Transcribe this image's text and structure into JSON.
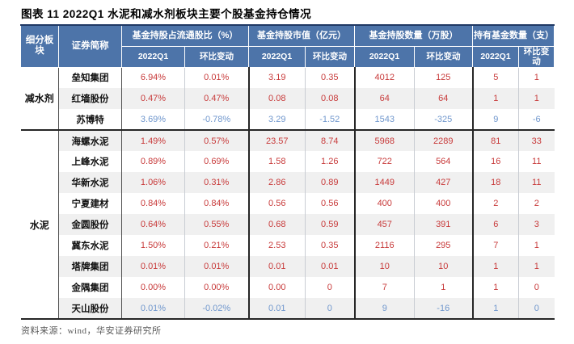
{
  "title": "图表 11 2022Q1 水泥和减水剂板块主要个股基金持仓情况",
  "source_note": "资料来源：wind，华安证券研究所",
  "colors": {
    "header_bg": "#4d74a9",
    "increase_text": "#c83b3b",
    "decrease_text": "#7097cd",
    "alt_row_bg": "#f0f0f0",
    "divider_dark": "#262626",
    "table_top_border": "#1f3864",
    "source_text": "#595959"
  },
  "table": {
    "corner_headers": [
      "细分板块",
      "证券简称"
    ],
    "group_headers": [
      "基金持股占流通股比（%）",
      "基金持股市值（亿元）",
      "基金持股数量（万股）",
      "持有基金数量（支）"
    ],
    "sub_headers": [
      "2022Q1",
      "环比变动"
    ],
    "groups": [
      {
        "sector": "减水剂",
        "rows": [
          {
            "name": "垒知集团",
            "trend": "up",
            "values": [
              "6.94%",
              "0.01%",
              "3.19",
              "0.35",
              "4012",
              "125",
              "5",
              "1"
            ]
          },
          {
            "name": "红墙股份",
            "trend": "up",
            "values": [
              "0.47%",
              "0.47%",
              "0.08",
              "0.08",
              "64",
              "64",
              "1",
              "1"
            ]
          },
          {
            "name": "苏博特",
            "trend": "down",
            "values": [
              "3.69%",
              "-0.78%",
              "3.29",
              "-1.52",
              "1543",
              "-325",
              "9",
              "-6"
            ]
          }
        ]
      },
      {
        "sector": "水泥",
        "rows": [
          {
            "name": "海螺水泥",
            "trend": "up",
            "values": [
              "1.49%",
              "0.57%",
              "23.57",
              "8.74",
              "5968",
              "2289",
              "81",
              "33"
            ]
          },
          {
            "name": "上峰水泥",
            "trend": "up",
            "values": [
              "0.89%",
              "0.69%",
              "1.58",
              "1.26",
              "722",
              "564",
              "16",
              "11"
            ]
          },
          {
            "name": "华新水泥",
            "trend": "up",
            "values": [
              "1.06%",
              "0.31%",
              "2.86",
              "0.89",
              "1449",
              "427",
              "18",
              "11"
            ]
          },
          {
            "name": "宁夏建材",
            "trend": "up",
            "values": [
              "0.84%",
              "0.84%",
              "0.56",
              "0.56",
              "400",
              "400",
              "2",
              "2"
            ]
          },
          {
            "name": "金圆股份",
            "trend": "up",
            "values": [
              "0.64%",
              "0.55%",
              "0.68",
              "0.59",
              "457",
              "391",
              "6",
              "3"
            ]
          },
          {
            "name": "冀东水泥",
            "trend": "up",
            "values": [
              "1.50%",
              "0.21%",
              "2.53",
              "0.35",
              "2116",
              "295",
              "7",
              "1"
            ]
          },
          {
            "name": "塔牌集团",
            "trend": "up",
            "values": [
              "0.01%",
              "0.01%",
              "0.01",
              "0.01",
              "10",
              "10",
              "1",
              "1"
            ]
          },
          {
            "name": "金隅集团",
            "trend": "up",
            "values": [
              "0.00%",
              "0.00%",
              "0.00",
              "0",
              "7",
              "1",
              "1",
              "0"
            ]
          },
          {
            "name": "天山股份",
            "trend": "down",
            "values": [
              "0.01%",
              "-0.02%",
              "0.01",
              "0",
              "9",
              "-16",
              "1",
              "0"
            ]
          }
        ]
      }
    ]
  }
}
